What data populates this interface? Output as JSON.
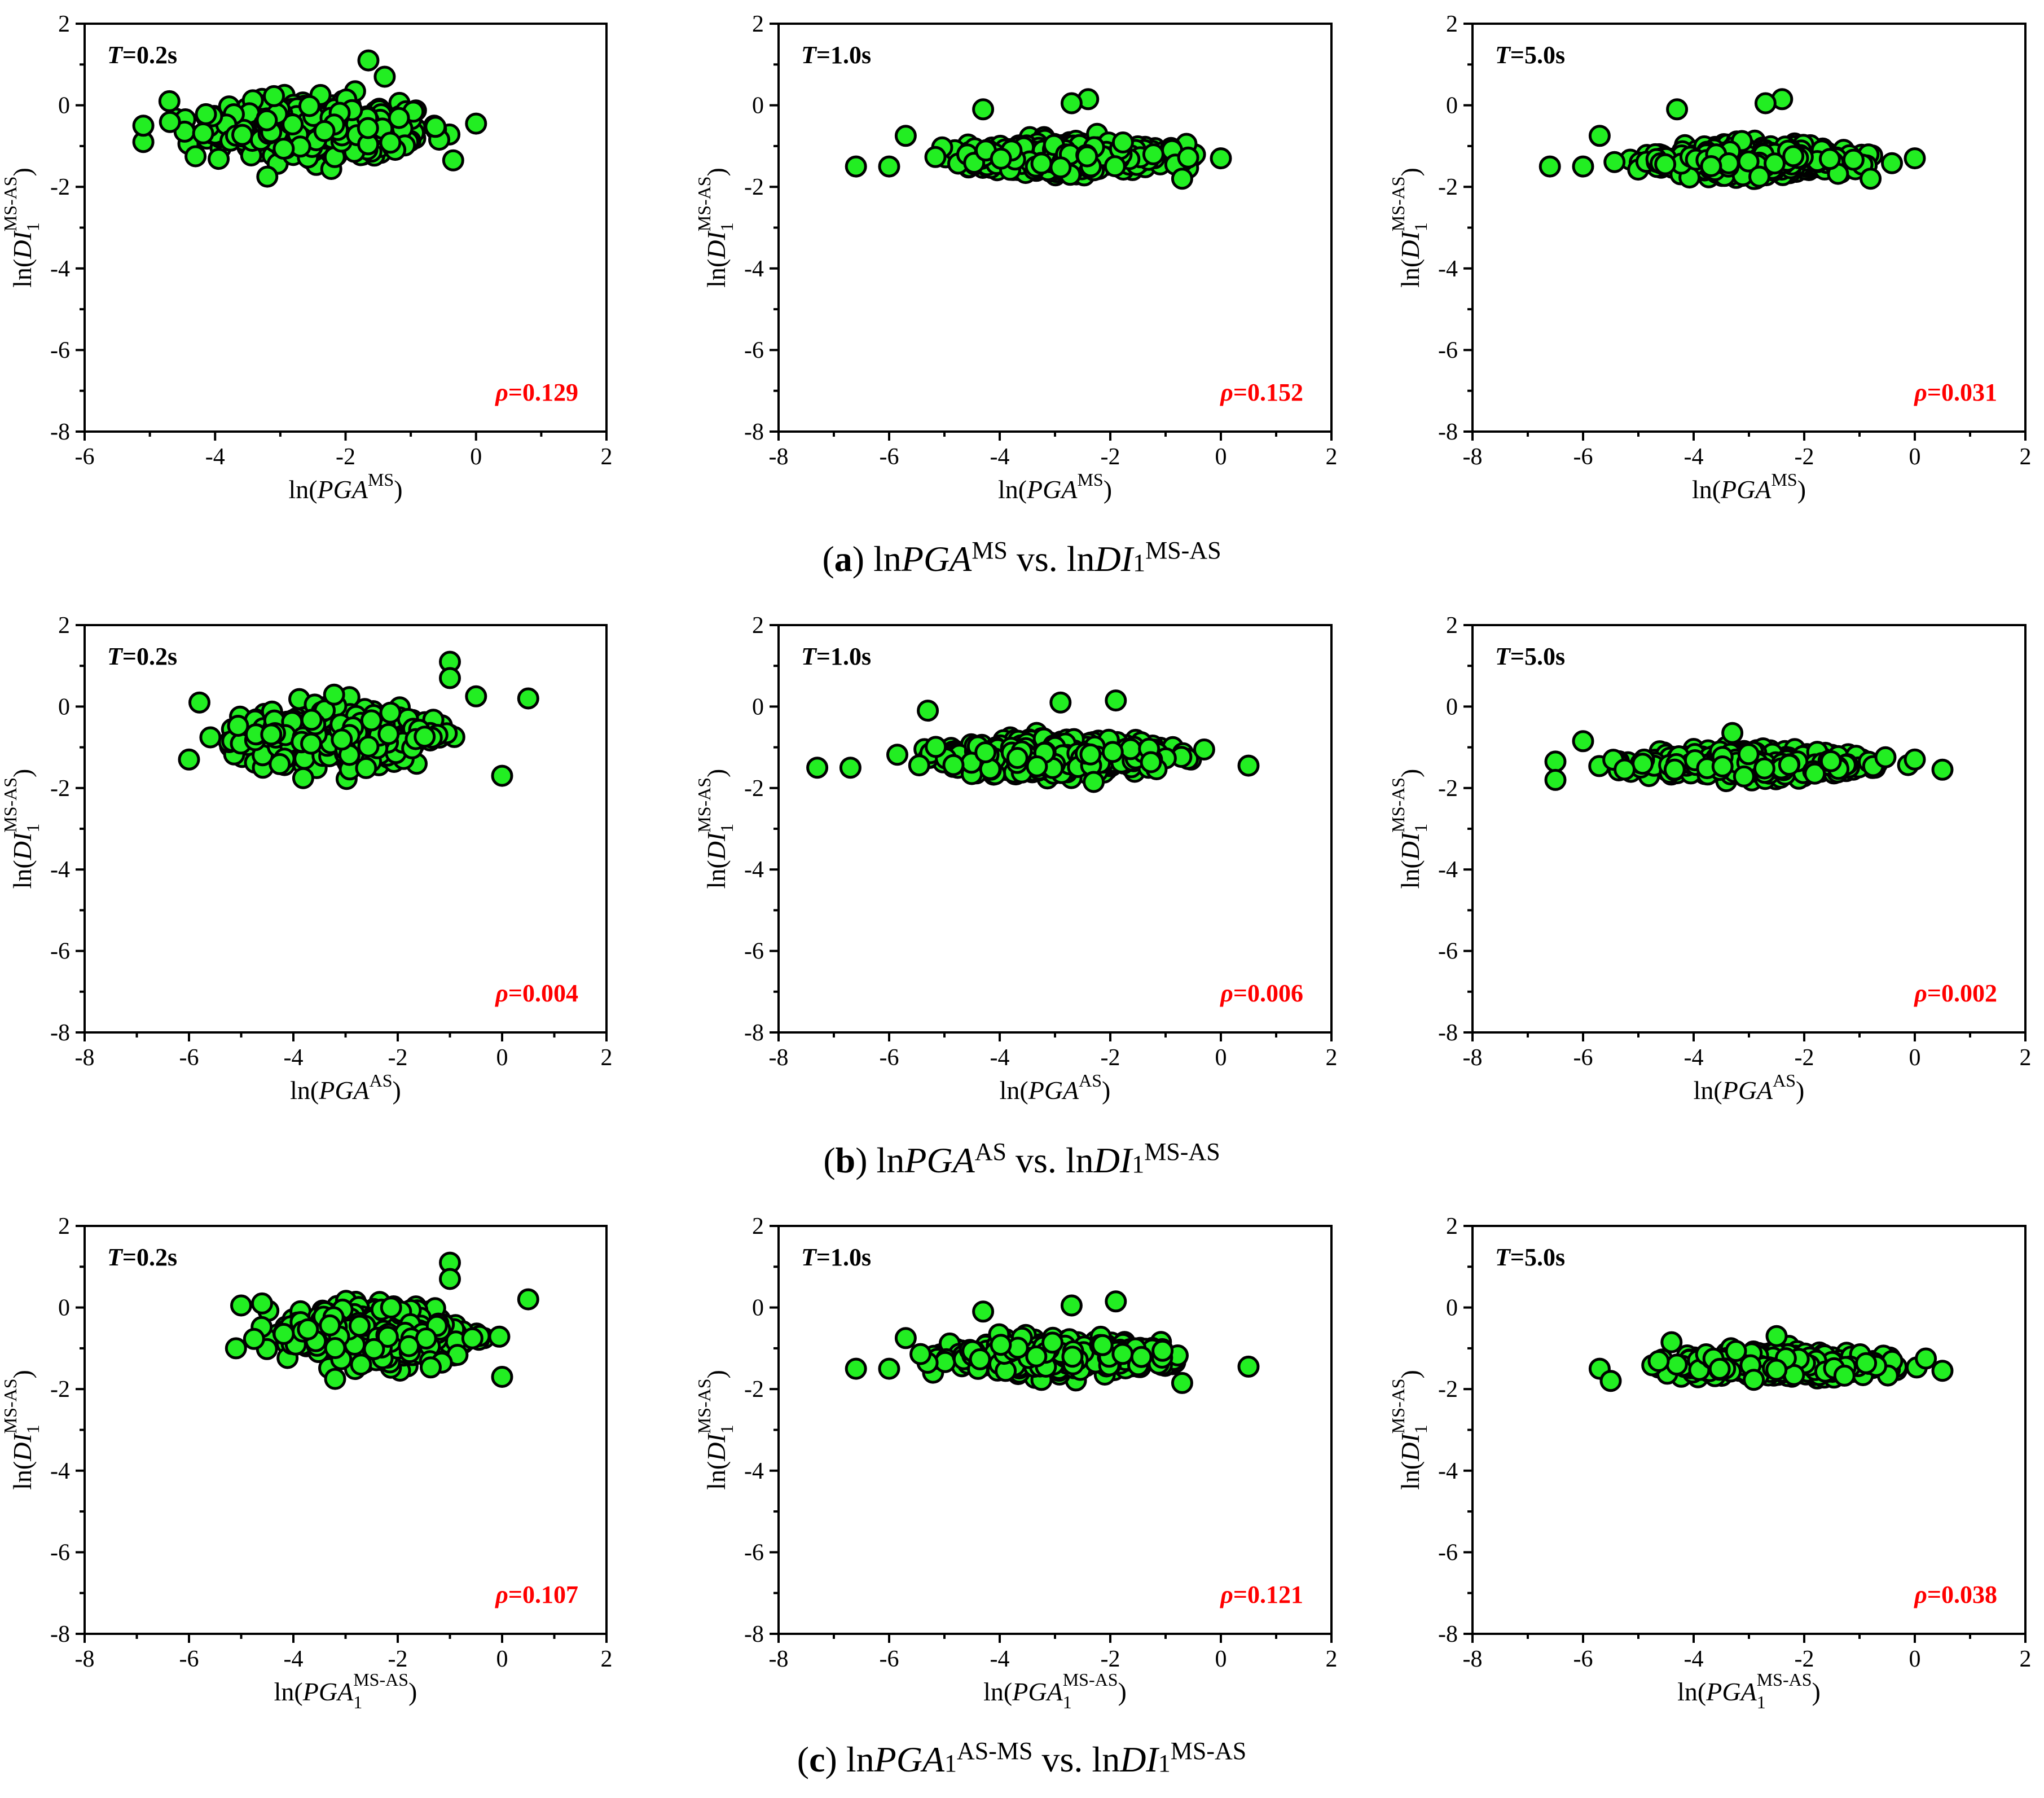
{
  "style": {
    "point_fill": "#22ee22",
    "point_stroke": "#000000",
    "rho_color": "#ff0000"
  },
  "captions": [
    {
      "letter": "a",
      "pre": " ln",
      "var1": "PGA",
      "sup1": "MS",
      "mid": " vs. ln",
      "var2": "DI",
      "sub2": "1",
      "sup2": "MS-AS"
    },
    {
      "letter": "b",
      "pre": " ln",
      "var1": "PGA",
      "sup1": "AS",
      "mid": " vs. ln",
      "var2": "DI",
      "sub2": "1",
      "sup2": "MS-AS"
    },
    {
      "letter": "c",
      "pre": " ln",
      "var1": "PGA",
      "sub1": "1",
      "sup1": "AS-MS",
      "mid": " vs. ln",
      "var2": "DI",
      "sub2": "1",
      "sup2": "MS-AS"
    }
  ],
  "chart_data": [
    {
      "type": "scatter",
      "row": 0,
      "col": 0,
      "panel_label": "T=0.2s",
      "rho_label": "ρ=0.129",
      "xlabel_var": "PGA",
      "xlabel_sup": "MS",
      "ylabel_var": "DI",
      "ylabel_sub": "1",
      "ylabel_sup": "MS-AS",
      "xlim": [
        -6,
        2
      ],
      "ylim": [
        -8,
        2
      ],
      "xticks": [
        -6,
        -4,
        -2,
        0,
        2
      ],
      "yticks": [
        -8,
        -6,
        -4,
        -2,
        0,
        2
      ],
      "x_range": [
        -5.1,
        0.0
      ],
      "y_center": -0.6,
      "y_spread": 0.55,
      "n_points": 420,
      "seed": 11,
      "anchors": [
        [
          -1.65,
          1.1
        ],
        [
          -1.4,
          0.7
        ],
        [
          -5.1,
          -0.9
        ],
        [
          -5.1,
          -0.5
        ],
        [
          -4.7,
          0.1
        ],
        [
          0.0,
          -0.45
        ],
        [
          -4.3,
          -1.25
        ],
        [
          -3.2,
          -1.75
        ],
        [
          -0.35,
          -1.35
        ]
      ]
    },
    {
      "type": "scatter",
      "row": 0,
      "col": 1,
      "panel_label": "T=1.0s",
      "rho_label": "ρ=0.152",
      "xlabel_var": "PGA",
      "xlabel_sup": "MS",
      "ylabel_var": "DI",
      "ylabel_sub": "1",
      "ylabel_sup": "MS-AS",
      "xlim": [
        -8,
        2
      ],
      "ylim": [
        -8,
        2
      ],
      "xticks": [
        -8,
        -6,
        -4,
        -2,
        0,
        2
      ],
      "yticks": [
        -8,
        -6,
        -4,
        -2,
        0,
        2
      ],
      "x_range": [
        -5.7,
        0.0
      ],
      "y_center": -1.25,
      "y_spread": 0.3,
      "n_points": 420,
      "seed": 23,
      "anchors": [
        [
          -6.6,
          -1.5
        ],
        [
          -6.0,
          -1.5
        ],
        [
          -4.3,
          -0.1
        ],
        [
          -2.4,
          0.15
        ],
        [
          -2.7,
          0.05
        ],
        [
          -5.7,
          -0.75
        ],
        [
          0.0,
          -1.3
        ],
        [
          -0.7,
          -1.8
        ]
      ]
    },
    {
      "type": "scatter",
      "row": 0,
      "col": 2,
      "panel_label": "T=5.0s",
      "rho_label": "ρ=0.031",
      "xlabel_var": "PGA",
      "xlabel_sup": "MS",
      "ylabel_var": "DI",
      "ylabel_sub": "1",
      "ylabel_sup": "MS-AS",
      "xlim": [
        -8,
        2
      ],
      "ylim": [
        -8,
        2
      ],
      "xticks": [
        -8,
        -6,
        -4,
        -2,
        0,
        2
      ],
      "yticks": [
        -8,
        -6,
        -4,
        -2,
        0,
        2
      ],
      "x_range": [
        -5.7,
        0.0
      ],
      "y_center": -1.35,
      "y_spread": 0.3,
      "n_points": 420,
      "seed": 37,
      "anchors": [
        [
          -6.6,
          -1.5
        ],
        [
          -6.0,
          -1.5
        ],
        [
          -4.3,
          -0.1
        ],
        [
          -2.4,
          0.15
        ],
        [
          -2.7,
          0.05
        ],
        [
          -5.7,
          -0.75
        ],
        [
          0.0,
          -1.3
        ],
        [
          -0.8,
          -1.8
        ]
      ]
    },
    {
      "type": "scatter",
      "row": 1,
      "col": 0,
      "panel_label": "T=0.2s",
      "rho_label": "ρ=0.004",
      "xlabel_var": "PGA",
      "xlabel_sup": "AS",
      "ylabel_var": "DI",
      "ylabel_sub": "1",
      "ylabel_sup": "MS-AS",
      "xlim": [
        -8,
        2
      ],
      "ylim": [
        -8,
        2
      ],
      "xticks": [
        -8,
        -6,
        -4,
        -2,
        0,
        2
      ],
      "yticks": [
        -8,
        -6,
        -4,
        -2,
        0,
        2
      ],
      "x_range": [
        -6.0,
        -0.5
      ],
      "y_center": -0.75,
      "y_spread": 0.55,
      "n_points": 420,
      "seed": 41,
      "anchors": [
        [
          -1.0,
          1.1
        ],
        [
          -1.0,
          0.7
        ],
        [
          0.5,
          0.2
        ],
        [
          -5.8,
          0.1
        ],
        [
          -6.0,
          -1.3
        ],
        [
          0.0,
          -1.7
        ],
        [
          -0.5,
          0.25
        ]
      ]
    },
    {
      "type": "scatter",
      "row": 1,
      "col": 1,
      "panel_label": "T=1.0s",
      "rho_label": "ρ=0.006",
      "xlabel_var": "PGA",
      "xlabel_sup": "AS",
      "ylabel_var": "DI",
      "ylabel_sub": "1",
      "ylabel_sup": "MS-AS",
      "xlim": [
        -8,
        2
      ],
      "ylim": [
        -8,
        2
      ],
      "xticks": [
        -8,
        -6,
        -4,
        -2,
        0,
        2
      ],
      "yticks": [
        -8,
        -6,
        -4,
        -2,
        0,
        2
      ],
      "x_range": [
        -6.2,
        0.0
      ],
      "y_center": -1.2,
      "y_spread": 0.35,
      "n_points": 420,
      "seed": 53,
      "anchors": [
        [
          -7.3,
          -1.5
        ],
        [
          -6.7,
          -1.5
        ],
        [
          -5.3,
          -0.1
        ],
        [
          -2.9,
          0.1
        ],
        [
          -1.9,
          0.15
        ],
        [
          0.5,
          -1.45
        ],
        [
          -2.3,
          -1.85
        ]
      ]
    },
    {
      "type": "scatter",
      "row": 1,
      "col": 2,
      "panel_label": "T=5.0s",
      "rho_label": "ρ=0.002",
      "xlabel_var": "PGA",
      "xlabel_sup": "AS",
      "ylabel_var": "DI",
      "ylabel_sub": "1",
      "ylabel_sup": "MS-AS",
      "xlim": [
        -8,
        2
      ],
      "ylim": [
        -8,
        2
      ],
      "xticks": [
        -8,
        -6,
        -4,
        -2,
        0,
        2
      ],
      "yticks": [
        -8,
        -6,
        -4,
        -2,
        0,
        2
      ],
      "x_range": [
        -6.0,
        0.2
      ],
      "y_center": -1.4,
      "y_spread": 0.25,
      "n_points": 400,
      "seed": 67,
      "anchors": [
        [
          -6.5,
          -1.35
        ],
        [
          -6.5,
          -1.8
        ],
        [
          -6.0,
          -0.85
        ],
        [
          -3.3,
          -0.65
        ],
        [
          0.5,
          -1.55
        ],
        [
          0.0,
          -1.3
        ]
      ]
    },
    {
      "type": "scatter",
      "row": 2,
      "col": 0,
      "panel_label": "T=0.2s",
      "rho_label": "ρ=0.107",
      "xlabel_var": "PGA",
      "xlabel_sub": "1",
      "xlabel_sup": "MS-AS",
      "ylabel_var": "DI",
      "ylabel_sub": "1",
      "ylabel_sup": "MS-AS",
      "xlim": [
        -8,
        2
      ],
      "ylim": [
        -8,
        2
      ],
      "xticks": [
        -8,
        -6,
        -4,
        -2,
        0,
        2
      ],
      "yticks": [
        -8,
        -6,
        -4,
        -2,
        0,
        2
      ],
      "x_range": [
        -5.0,
        0.0
      ],
      "y_center": -0.65,
      "y_spread": 0.55,
      "n_points": 420,
      "seed": 71,
      "anchors": [
        [
          -1.0,
          1.1
        ],
        [
          -1.0,
          0.7
        ],
        [
          0.5,
          0.2
        ],
        [
          -5.1,
          -1.0
        ],
        [
          -5.0,
          0.05
        ],
        [
          -4.6,
          0.1
        ],
        [
          0.0,
          -1.7
        ],
        [
          -3.2,
          -1.75
        ]
      ]
    },
    {
      "type": "scatter",
      "row": 2,
      "col": 1,
      "panel_label": "T=1.0s",
      "rho_label": "ρ=0.121",
      "xlabel_var": "PGA",
      "xlabel_sub": "1",
      "xlabel_sup": "MS-AS",
      "ylabel_var": "DI",
      "ylabel_sub": "1",
      "ylabel_sup": "MS-AS",
      "xlim": [
        -8,
        2
      ],
      "ylim": [
        -8,
        2
      ],
      "xticks": [
        -8,
        -6,
        -4,
        -2,
        0,
        2
      ],
      "yticks": [
        -8,
        -6,
        -4,
        -2,
        0,
        2
      ],
      "x_range": [
        -5.7,
        0.0
      ],
      "y_center": -1.2,
      "y_spread": 0.33,
      "n_points": 420,
      "seed": 83,
      "anchors": [
        [
          -6.6,
          -1.5
        ],
        [
          -6.0,
          -1.5
        ],
        [
          -4.3,
          -0.1
        ],
        [
          -1.9,
          0.15
        ],
        [
          -2.7,
          0.05
        ],
        [
          -5.7,
          -0.75
        ],
        [
          0.5,
          -1.45
        ],
        [
          -0.7,
          -1.85
        ]
      ]
    },
    {
      "type": "scatter",
      "row": 2,
      "col": 2,
      "panel_label": "T=5.0s",
      "rho_label": "ρ=0.038",
      "xlabel_var": "PGA",
      "xlabel_sub": "1",
      "xlabel_sup": "MS-AS",
      "ylabel_var": "DI",
      "ylabel_sub": "1",
      "ylabel_sup": "MS-AS",
      "xlim": [
        -8,
        2
      ],
      "ylim": [
        -8,
        2
      ],
      "xticks": [
        -8,
        -6,
        -4,
        -2,
        0,
        2
      ],
      "yticks": [
        -8,
        -6,
        -4,
        -2,
        0,
        2
      ],
      "x_range": [
        -5.3,
        0.2
      ],
      "y_center": -1.4,
      "y_spread": 0.25,
      "n_points": 380,
      "seed": 97,
      "anchors": [
        [
          -5.7,
          -1.5
        ],
        [
          -5.5,
          -1.8
        ],
        [
          -4.4,
          -0.85
        ],
        [
          -2.5,
          -0.7
        ],
        [
          0.5,
          -1.55
        ],
        [
          0.2,
          -1.25
        ]
      ]
    }
  ]
}
